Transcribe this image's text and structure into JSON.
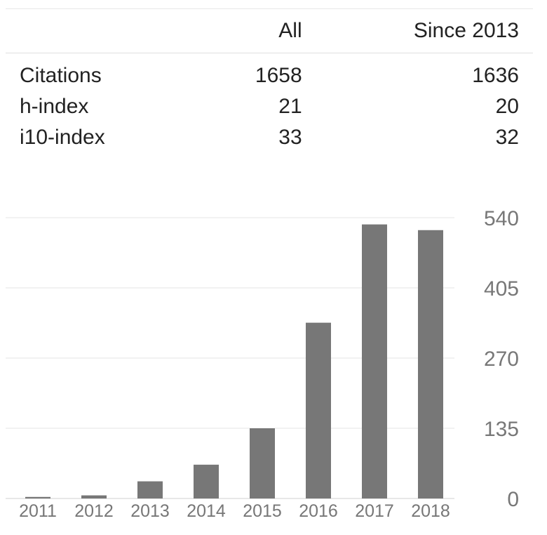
{
  "stats": {
    "columns": [
      "",
      "All",
      "Since 2013"
    ],
    "rows": [
      {
        "label": "Citations",
        "all": "1658",
        "since": "1636"
      },
      {
        "label": "h-index",
        "all": "21",
        "since": "20"
      },
      {
        "label": "i10-index",
        "all": "33",
        "since": "32"
      }
    ]
  },
  "chart_data": {
    "type": "bar",
    "categories": [
      "2011",
      "2012",
      "2013",
      "2014",
      "2015",
      "2016",
      "2017",
      "2018"
    ],
    "values": [
      3,
      6,
      33,
      65,
      135,
      338,
      527,
      516
    ],
    "yticks": [
      "0",
      "135",
      "270",
      "405",
      "540"
    ],
    "ylim": [
      0,
      540
    ],
    "grid": true,
    "bar_color": "#777777",
    "grid_color": "#e5e5e5",
    "xlabel": "",
    "ylabel": "",
    "title": ""
  }
}
